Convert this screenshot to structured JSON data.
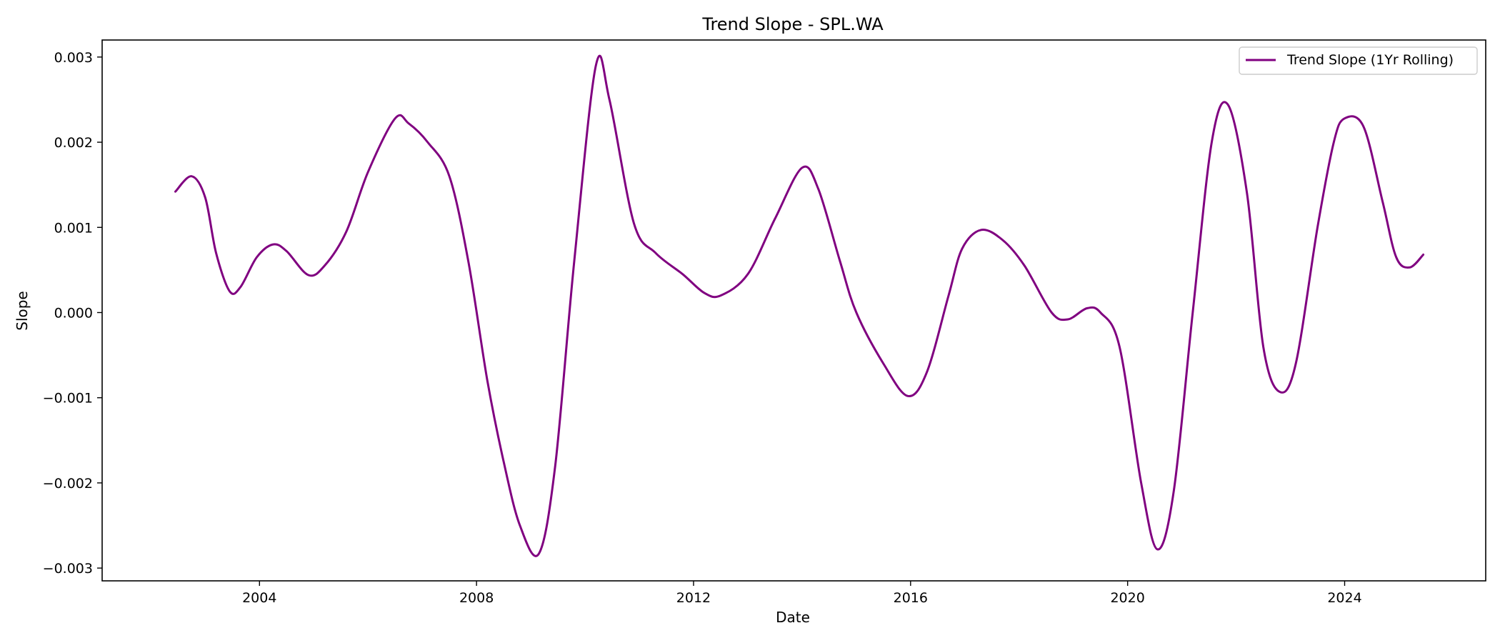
{
  "chart_data": {
    "type": "line",
    "title": "Trend Slope - SPL.WA",
    "xlabel": "Date",
    "ylabel": "Slope",
    "xlim": [
      2001.1,
      2026.6
    ],
    "ylim": [
      -0.00315,
      0.0032
    ],
    "x_ticks": [
      2004,
      2008,
      2012,
      2016,
      2020,
      2024
    ],
    "x_tick_labels": [
      "2004",
      "2008",
      "2012",
      "2016",
      "2020",
      "2024"
    ],
    "y_ticks": [
      -0.003,
      -0.002,
      -0.001,
      0.0,
      0.001,
      0.002,
      0.003
    ],
    "y_tick_labels": [
      "−0.003",
      "−0.002",
      "−0.001",
      "0.000",
      "0.001",
      "0.002",
      "0.003"
    ],
    "grid": false,
    "legend_position": "top-right",
    "series": [
      {
        "name": "Trend Slope (1Yr Rolling)",
        "color": "#800080",
        "points": [
          [
            2002.45,
            0.00142
          ],
          [
            2002.75,
            0.0016
          ],
          [
            2003.0,
            0.00135
          ],
          [
            2003.2,
            0.0007
          ],
          [
            2003.45,
            0.00025
          ],
          [
            2003.65,
            0.0003
          ],
          [
            2003.95,
            0.00065
          ],
          [
            2004.25,
            0.0008
          ],
          [
            2004.5,
            0.00072
          ],
          [
            2004.9,
            0.00044
          ],
          [
            2005.2,
            0.00055
          ],
          [
            2005.6,
            0.00095
          ],
          [
            2006.0,
            0.00165
          ],
          [
            2006.5,
            0.00228
          ],
          [
            2006.75,
            0.00222
          ],
          [
            2007.1,
            0.002
          ],
          [
            2007.5,
            0.0016
          ],
          [
            2007.85,
            0.0006
          ],
          [
            2008.2,
            -0.0008
          ],
          [
            2008.5,
            -0.00175
          ],
          [
            2008.8,
            -0.0025
          ],
          [
            2009.15,
            -0.00283
          ],
          [
            2009.45,
            -0.0018
          ],
          [
            2009.8,
            0.0006
          ],
          [
            2010.2,
            0.0029
          ],
          [
            2010.45,
            0.0025
          ],
          [
            2010.9,
            0.00105
          ],
          [
            2011.3,
            0.0007
          ],
          [
            2011.8,
            0.00045
          ],
          [
            2012.2,
            0.00023
          ],
          [
            2012.5,
            0.0002
          ],
          [
            2013.0,
            0.00045
          ],
          [
            2013.5,
            0.0011
          ],
          [
            2014.0,
            0.0017
          ],
          [
            2014.3,
            0.00145
          ],
          [
            2014.7,
            0.0006
          ],
          [
            2015.0,
            0.0
          ],
          [
            2015.5,
            -0.0006
          ],
          [
            2015.95,
            -0.00098
          ],
          [
            2016.3,
            -0.0007
          ],
          [
            2016.7,
            0.0002
          ],
          [
            2016.95,
            0.00075
          ],
          [
            2017.3,
            0.00097
          ],
          [
            2017.7,
            0.00085
          ],
          [
            2018.1,
            0.00055
          ],
          [
            2018.6,
            0.0
          ],
          [
            2018.9,
            -8e-05
          ],
          [
            2019.25,
            5e-05
          ],
          [
            2019.5,
            0.0
          ],
          [
            2019.85,
            -0.0004
          ],
          [
            2020.25,
            -0.002
          ],
          [
            2020.55,
            -0.00278
          ],
          [
            2020.85,
            -0.0021
          ],
          [
            2021.2,
            0.0
          ],
          [
            2021.55,
            0.002
          ],
          [
            2021.85,
            0.00244
          ],
          [
            2022.2,
            0.0014
          ],
          [
            2022.5,
            -0.0004
          ],
          [
            2022.8,
            -0.00093
          ],
          [
            2023.1,
            -0.0006
          ],
          [
            2023.5,
            0.001
          ],
          [
            2023.8,
            0.002
          ],
          [
            2024.0,
            0.00228
          ],
          [
            2024.35,
            0.00218
          ],
          [
            2024.7,
            0.0013
          ],
          [
            2024.95,
            0.00065
          ],
          [
            2025.2,
            0.00053
          ],
          [
            2025.45,
            0.00068
          ]
        ]
      }
    ]
  }
}
